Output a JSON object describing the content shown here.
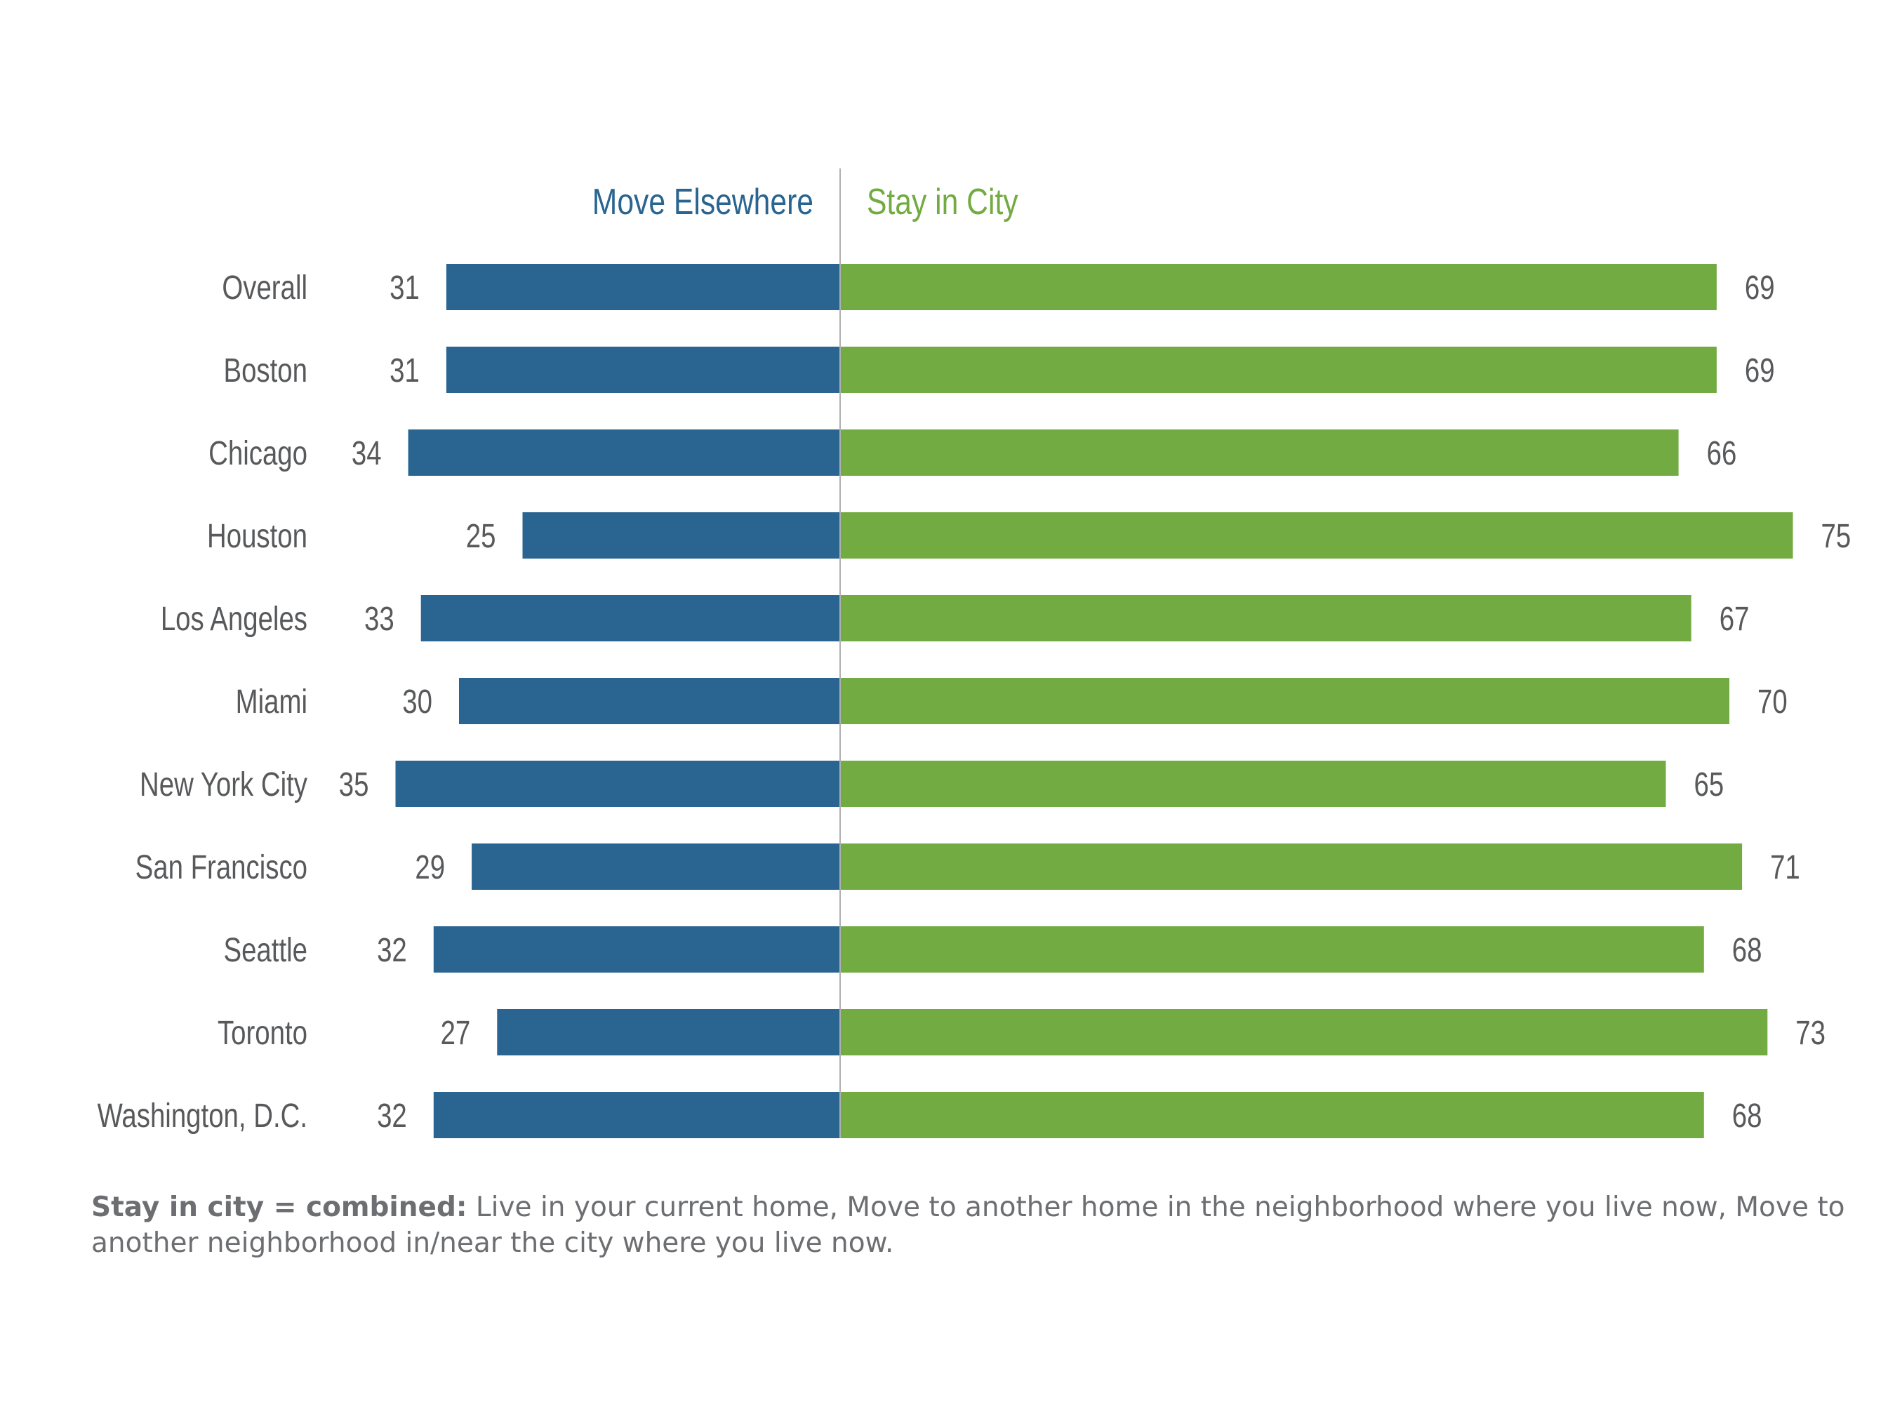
{
  "colors": {
    "move": "#296590",
    "stay": "#72ab41",
    "label": "#58595b",
    "divider": "#b0b0b0"
  },
  "chart_data": {
    "type": "bar",
    "orientation": "horizontal-diverging",
    "categories": [
      "Overall",
      "Boston",
      "Chicago",
      "Houston",
      "Los Angeles",
      "Miami",
      "New York City",
      "San Francisco",
      "Seattle",
      "Toronto",
      "Washington, D.C."
    ],
    "series": [
      {
        "name": "Move Elsewhere",
        "values": [
          31,
          31,
          34,
          25,
          33,
          30,
          35,
          29,
          32,
          27,
          32
        ]
      },
      {
        "name": "Stay in City",
        "values": [
          69,
          69,
          66,
          75,
          67,
          70,
          65,
          71,
          68,
          73,
          68
        ]
      }
    ],
    "legend_placement": "top-center",
    "grid": false
  },
  "footnote": {
    "bold": "Stay in city = combined:",
    "text": " Live in your current home, Move to another home in the neighborhood where you live now, Move to another neighborhood in/near the city where you live now."
  }
}
